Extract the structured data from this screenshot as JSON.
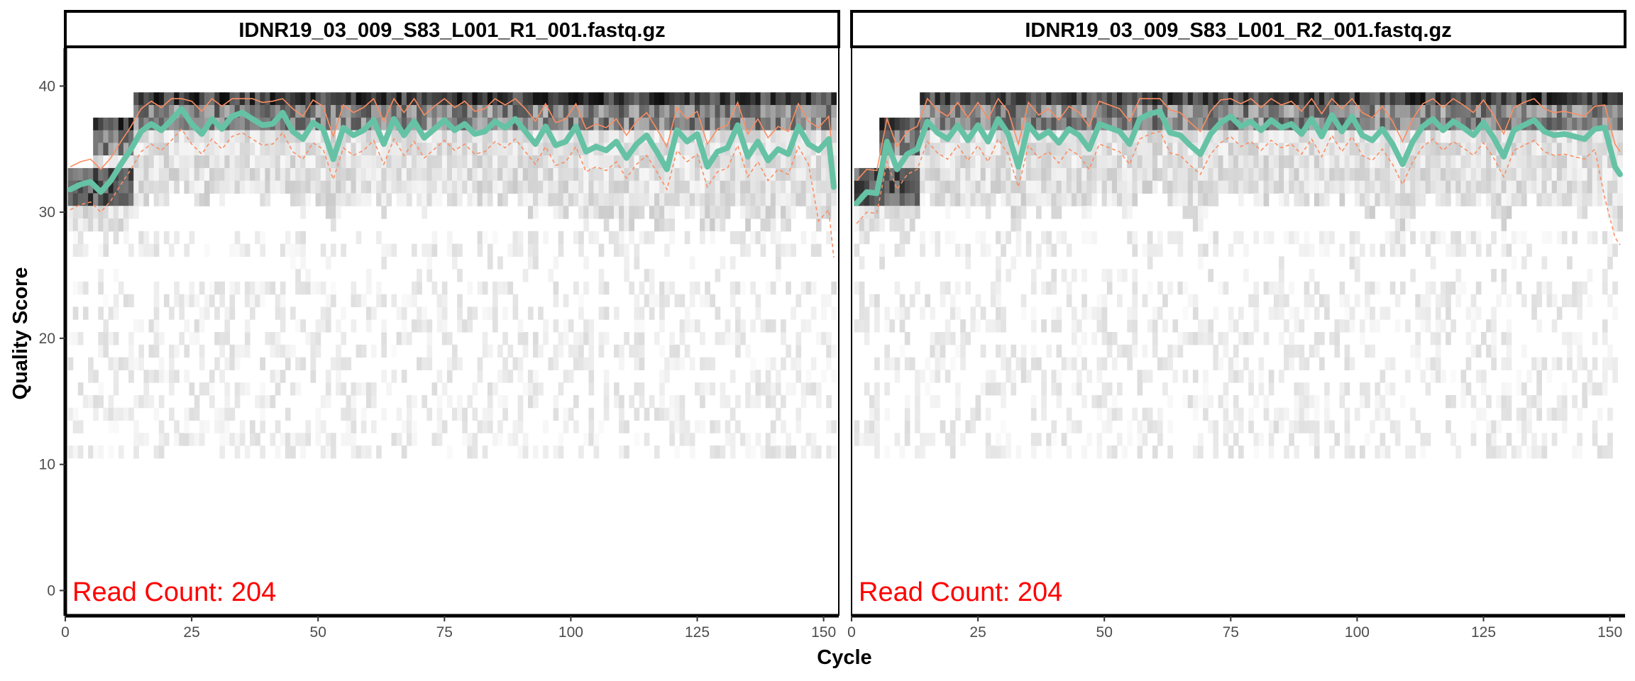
{
  "chart_data": {
    "type": "heatmap",
    "xlabel": "Cycle",
    "ylabel": "Quality Score",
    "xlim": [
      0,
      153
    ],
    "ylim": [
      -2,
      43
    ],
    "x_ticks": [
      0,
      25,
      50,
      75,
      100,
      125,
      150
    ],
    "y_ticks": [
      0,
      10,
      20,
      30,
      40
    ],
    "grid": false,
    "colors": {
      "mean_line": "#66C2A5",
      "quartile_line": "#FC8D62",
      "heat_low": "#ffffff",
      "heat_high": "#000000",
      "read_count": "#ff0000"
    },
    "panels": [
      {
        "title": "IDNR19_03_009_S83_L001_R1_001.fastq.gz",
        "read_count_label": "Read Count:",
        "read_count_value": "204",
        "mean_quality": [
          [
            1,
            31.8
          ],
          [
            3,
            32.2
          ],
          [
            5,
            32.4
          ],
          [
            7,
            31.6
          ],
          [
            9,
            32.5
          ],
          [
            11,
            33.8
          ],
          [
            13,
            35.0
          ],
          [
            15,
            36.4
          ],
          [
            17,
            37.0
          ],
          [
            19,
            36.5
          ],
          [
            21,
            37.3
          ],
          [
            23,
            38.2
          ],
          [
            25,
            37.0
          ],
          [
            27,
            36.2
          ],
          [
            29,
            37.4
          ],
          [
            31,
            36.6
          ],
          [
            33,
            37.6
          ],
          [
            35,
            37.9
          ],
          [
            37,
            37.4
          ],
          [
            39,
            36.9
          ],
          [
            41,
            37.0
          ],
          [
            43,
            37.9
          ],
          [
            45,
            36.4
          ],
          [
            47,
            35.8
          ],
          [
            49,
            37.1
          ],
          [
            51,
            36.6
          ],
          [
            53,
            34.2
          ],
          [
            55,
            36.7
          ],
          [
            57,
            36.1
          ],
          [
            59,
            36.5
          ],
          [
            61,
            37.3
          ],
          [
            63,
            35.4
          ],
          [
            65,
            37.4
          ],
          [
            67,
            36.1
          ],
          [
            69,
            37.2
          ],
          [
            71,
            35.9
          ],
          [
            73,
            36.6
          ],
          [
            75,
            37.3
          ],
          [
            77,
            36.5
          ],
          [
            79,
            37.0
          ],
          [
            81,
            36.2
          ],
          [
            83,
            36.4
          ],
          [
            85,
            37.2
          ],
          [
            87,
            36.7
          ],
          [
            89,
            37.4
          ],
          [
            91,
            36.4
          ],
          [
            93,
            35.4
          ],
          [
            95,
            36.8
          ],
          [
            97,
            35.3
          ],
          [
            99,
            35.6
          ],
          [
            101,
            36.8
          ],
          [
            103,
            34.8
          ],
          [
            105,
            35.2
          ],
          [
            107,
            34.9
          ],
          [
            109,
            35.6
          ],
          [
            111,
            34.3
          ],
          [
            113,
            35.4
          ],
          [
            115,
            36.1
          ],
          [
            117,
            34.8
          ],
          [
            119,
            33.4
          ],
          [
            121,
            36.5
          ],
          [
            123,
            35.6
          ],
          [
            125,
            36.2
          ],
          [
            127,
            33.6
          ],
          [
            129,
            34.8
          ],
          [
            131,
            35.1
          ],
          [
            133,
            36.9
          ],
          [
            135,
            34.4
          ],
          [
            137,
            35.6
          ],
          [
            139,
            34.1
          ],
          [
            141,
            35.0
          ],
          [
            143,
            34.6
          ],
          [
            145,
            36.8
          ],
          [
            147,
            35.4
          ],
          [
            149,
            34.9
          ],
          [
            151,
            35.8
          ],
          [
            152,
            32.0
          ]
        ]
      },
      {
        "title": "IDNR19_03_009_S83_L001_R2_001.fastq.gz",
        "read_count_label": "Read Count:",
        "read_count_value": "204",
        "mean_quality": [
          [
            1,
            30.7
          ],
          [
            3,
            31.6
          ],
          [
            5,
            31.5
          ],
          [
            7,
            35.6
          ],
          [
            9,
            33.4
          ],
          [
            11,
            34.6
          ],
          [
            13,
            35.0
          ],
          [
            15,
            37.2
          ],
          [
            17,
            36.3
          ],
          [
            19,
            35.8
          ],
          [
            21,
            36.9
          ],
          [
            23,
            35.7
          ],
          [
            25,
            36.9
          ],
          [
            27,
            35.6
          ],
          [
            29,
            37.4
          ],
          [
            31,
            36.2
          ],
          [
            33,
            33.6
          ],
          [
            35,
            36.9
          ],
          [
            37,
            35.9
          ],
          [
            39,
            36.4
          ],
          [
            41,
            35.5
          ],
          [
            43,
            36.6
          ],
          [
            45,
            36.1
          ],
          [
            47,
            35.0
          ],
          [
            49,
            37.0
          ],
          [
            51,
            36.7
          ],
          [
            53,
            36.4
          ],
          [
            55,
            35.4
          ],
          [
            57,
            37.4
          ],
          [
            59,
            37.8
          ],
          [
            61,
            38.0
          ],
          [
            63,
            36.3
          ],
          [
            65,
            36.1
          ],
          [
            67,
            35.3
          ],
          [
            69,
            34.6
          ],
          [
            71,
            36.2
          ],
          [
            73,
            37.1
          ],
          [
            75,
            37.6
          ],
          [
            77,
            36.8
          ],
          [
            79,
            37.2
          ],
          [
            81,
            36.5
          ],
          [
            83,
            37.3
          ],
          [
            85,
            36.7
          ],
          [
            87,
            37.0
          ],
          [
            89,
            36.2
          ],
          [
            91,
            37.4
          ],
          [
            93,
            36.0
          ],
          [
            95,
            37.7
          ],
          [
            97,
            36.4
          ],
          [
            99,
            37.6
          ],
          [
            101,
            36.1
          ],
          [
            103,
            35.7
          ],
          [
            105,
            36.6
          ],
          [
            107,
            35.4
          ],
          [
            109,
            33.8
          ],
          [
            111,
            35.6
          ],
          [
            113,
            36.8
          ],
          [
            115,
            37.4
          ],
          [
            117,
            36.5
          ],
          [
            119,
            37.2
          ],
          [
            121,
            36.7
          ],
          [
            123,
            36.1
          ],
          [
            125,
            37.1
          ],
          [
            127,
            35.9
          ],
          [
            129,
            34.4
          ],
          [
            131,
            36.5
          ],
          [
            133,
            36.9
          ],
          [
            135,
            37.3
          ],
          [
            137,
            36.4
          ],
          [
            139,
            36.1
          ],
          [
            141,
            36.2
          ],
          [
            143,
            36.0
          ],
          [
            145,
            35.8
          ],
          [
            147,
            36.6
          ],
          [
            149,
            36.7
          ],
          [
            151,
            33.6
          ],
          [
            152,
            33.0
          ]
        ]
      }
    ]
  }
}
